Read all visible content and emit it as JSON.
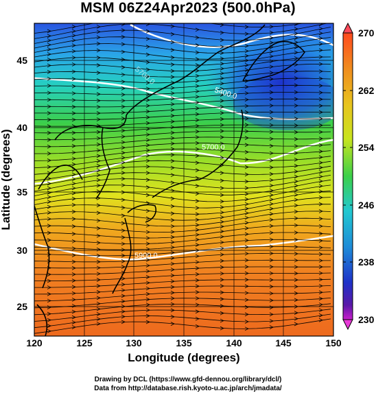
{
  "title": "MSM 06Z24Apr2023 (500.0hPa)",
  "x_axis": {
    "title": "Longitude (degrees)",
    "ticks": [
      "120",
      "125",
      "130",
      "135",
      "140",
      "145",
      "150"
    ]
  },
  "y_axis": {
    "title": "Latitude  (degrees)",
    "ticks": [
      "25",
      "30",
      "35",
      "40",
      "45"
    ]
  },
  "colorbar": {
    "ticks": [
      "270",
      "262",
      "254",
      "246",
      "238",
      "230"
    ]
  },
  "contour_labels": [
    "5400.0",
    "5700.0",
    "5700.0",
    "5900.0"
  ],
  "credits": {
    "line1": "Drawing by DCL (https://www.gfd-dennou.org/library/dcl/)",
    "line2": "Data from http://database.rish.kyoto-u.ac.jp/arch/jmadata/"
  },
  "colors": {
    "cold": "#1a2fcf",
    "cool": "#22c4d8",
    "mild": "#3cd04a",
    "warm_yellow": "#d8e81e",
    "warm": "#f08a1e",
    "hot": "#e6501e",
    "contour": "#ffffff",
    "streamline": "#000000"
  }
}
